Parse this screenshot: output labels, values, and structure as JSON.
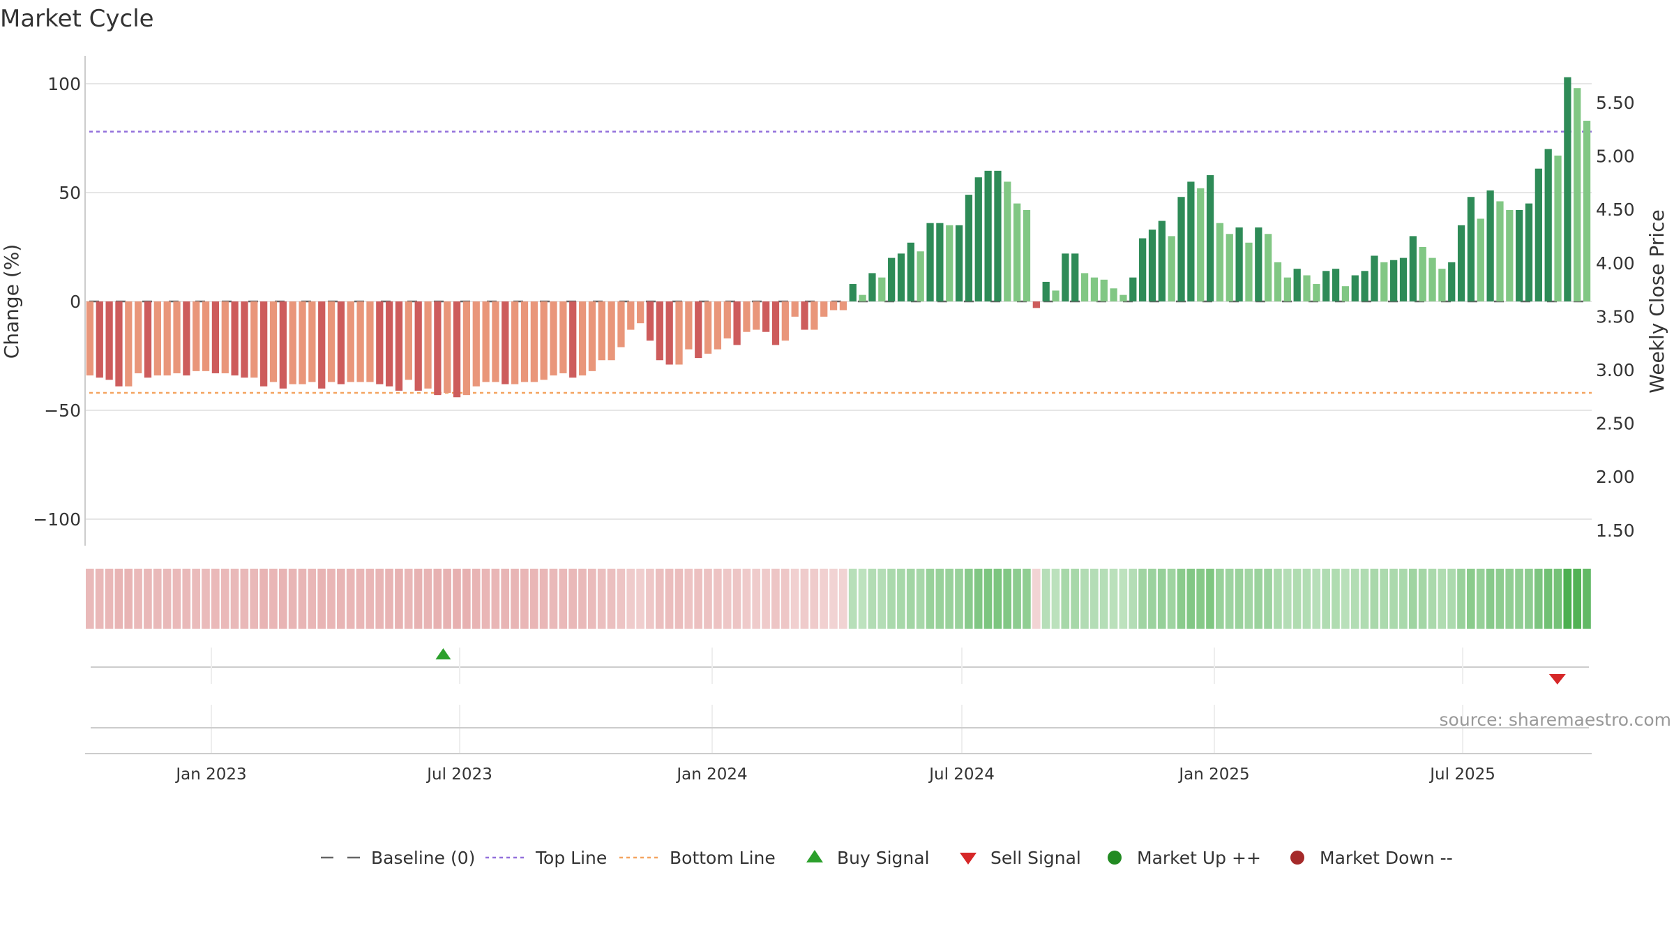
{
  "chart_data": {
    "type": "bar",
    "title": "Market Cycle",
    "ylabel_left": "Change (%)",
    "ylabel_right": "Weekly Close Price",
    "source": "source: sharemaestro.com",
    "y_left_ticks": [
      "100",
      "50",
      "0",
      "−50",
      "−100"
    ],
    "y_left_tick_values": [
      100,
      50,
      0,
      -50,
      -100
    ],
    "y_left_range": [
      -112,
      112
    ],
    "y_right_ticks": [
      "5.50",
      "5.00",
      "4.50",
      "4.00",
      "3.50",
      "3.00",
      "2.50",
      "2.00",
      "1.50"
    ],
    "y_right_tick_values": [
      5.5,
      5.0,
      4.5,
      4.0,
      3.5,
      3.0,
      2.5,
      2.0,
      1.5
    ],
    "x_ticks": [
      "Jan 2023",
      "Jul 2023",
      "Jan 2024",
      "Jul 2024",
      "Jan 2025",
      "Jul 2025"
    ],
    "x_tick_dates": [
      "2023-01-01",
      "2023-07-01",
      "2024-01-01",
      "2024-07-01",
      "2025-01-01",
      "2025-07-01"
    ],
    "start_date": "2022-10-01",
    "end_date": "2025-10-03",
    "top_line": 78,
    "bottom_line": -42,
    "weekly_change": [
      -34,
      -35,
      -36,
      -39,
      -39,
      -33,
      -35,
      -34,
      -34,
      -33,
      -34,
      -32,
      -32,
      -33,
      -33,
      -34,
      -35,
      -35,
      -39,
      -37,
      -40,
      -38,
      -38,
      -37,
      -40,
      -37,
      -38,
      -37,
      -37,
      -37,
      -38,
      -39,
      -41,
      -36,
      -41,
      -40,
      -43,
      -42,
      -44,
      -43,
      -39,
      -37,
      -37,
      -38,
      -38,
      -37,
      -37,
      -36,
      -34,
      -33,
      -35,
      -34,
      -32,
      -27,
      -27,
      -21,
      -13,
      -10,
      -18,
      -27,
      -29,
      -29,
      -22,
      -26,
      -24,
      -22,
      -17,
      -20,
      -14,
      -13,
      -14,
      -20,
      -18,
      -7,
      -13,
      -13,
      -7,
      -4,
      -4,
      8,
      3,
      13,
      11,
      20,
      22,
      27,
      23,
      36,
      36,
      35,
      35,
      49,
      57,
      60,
      60,
      55,
      45,
      42,
      -3,
      9,
      5,
      22,
      22,
      13,
      11,
      10,
      6,
      3,
      11,
      29,
      33,
      37,
      30,
      48,
      55,
      52,
      58,
      36,
      31,
      34,
      27,
      34,
      31,
      18,
      11,
      15,
      12,
      8,
      14,
      15,
      7,
      12,
      14,
      21,
      18,
      19,
      20,
      30,
      25,
      20,
      15,
      18,
      35,
      48,
      38,
      51,
      46,
      42,
      42,
      45,
      61,
      70,
      67,
      103,
      98,
      83
    ],
    "signals": {
      "buy": [
        {
          "date": "2023-06-19"
        }
      ],
      "sell": [
        {
          "date": "2025-09-08"
        }
      ]
    },
    "legend": [
      "Baseline (0)",
      "Top Line",
      "Bottom Line",
      "Buy Signal",
      "Sell Signal",
      "Market Up ++",
      "Market Down --"
    ],
    "colors": {
      "up_strong": "#2e8b57",
      "up_light": "#81c784",
      "down_strong": "#cd5c5c",
      "down_light": "#e9967a",
      "top_line": "#9370db",
      "bottom_line": "#f4a460",
      "buy": "#2ca02c",
      "sell": "#d62728",
      "market_up": "#228b22",
      "market_down": "#a52a2a",
      "baseline": "#666666"
    }
  }
}
